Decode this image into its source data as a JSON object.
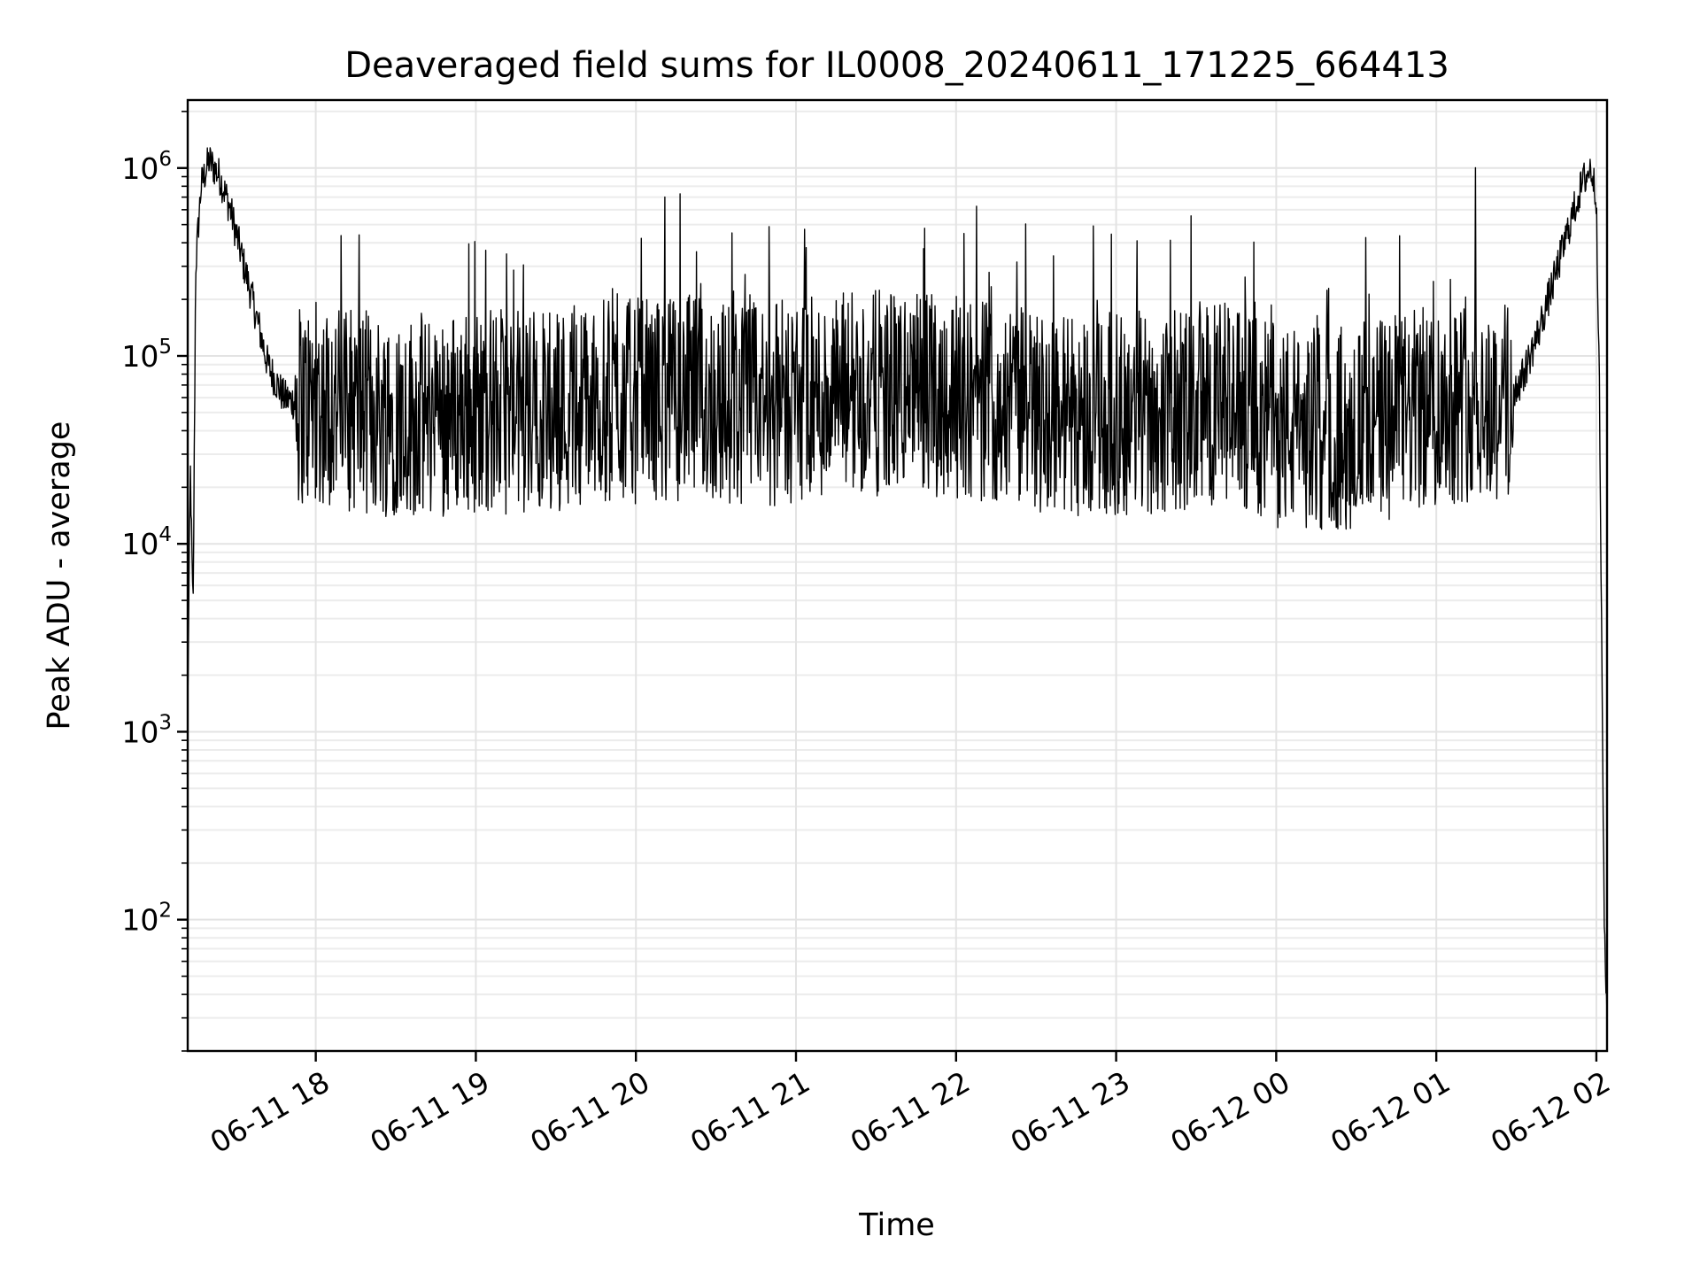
{
  "chart_data": {
    "type": "line",
    "title": "Deaveraged field sums for IL0008_20240611_171225_664413",
    "xlabel": "Time",
    "ylabel": "Peak ADU - average",
    "yscale": "log",
    "ylim": [
      20,
      2300000
    ],
    "xlim": [
      "2024-06-11 17:12",
      "2024-06-12 02:04"
    ],
    "grid": true,
    "line_color": "#000000",
    "x_ticks": [
      {
        "value": "2024-06-11 18:00",
        "label": "06-11 18"
      },
      {
        "value": "2024-06-11 19:00",
        "label": "06-11 19"
      },
      {
        "value": "2024-06-11 20:00",
        "label": "06-11 20"
      },
      {
        "value": "2024-06-11 21:00",
        "label": "06-11 21"
      },
      {
        "value": "2024-06-11 22:00",
        "label": "06-11 22"
      },
      {
        "value": "2024-06-11 23:00",
        "label": "06-11 23"
      },
      {
        "value": "2024-06-12 00:00",
        "label": "06-12 00"
      },
      {
        "value": "2024-06-12 01:00",
        "label": "06-12 01"
      },
      {
        "value": "2024-06-12 02:00",
        "label": "06-12 02"
      }
    ],
    "y_ticks": [
      {
        "value": 100,
        "base": "10",
        "exp": "2"
      },
      {
        "value": 1000,
        "base": "10",
        "exp": "3"
      },
      {
        "value": 10000,
        "base": "10",
        "exp": "4"
      },
      {
        "value": 100000,
        "base": "10",
        "exp": "5"
      },
      {
        "value": 1000000,
        "base": "10",
        "exp": "6"
      }
    ],
    "series": [
      {
        "x": [
          "2024-06-11 17:12",
          "2024-06-11 17:13",
          "2024-06-11 17:14",
          "2024-06-11 17:15",
          "2024-06-11 17:17",
          "2024-06-11 17:20",
          "2024-06-11 17:24",
          "2024-06-11 17:28",
          "2024-06-11 17:32",
          "2024-06-11 17:37",
          "2024-06-11 17:42",
          "2024-06-11 17:48",
          "2024-06-11 17:55",
          "2024-06-11 18:05",
          "2024-06-11 18:20",
          "2024-06-11 18:40",
          "2024-06-11 19:00",
          "2024-06-11 19:20",
          "2024-06-11 19:40",
          "2024-06-11 20:00",
          "2024-06-11 20:20",
          "2024-06-11 20:40",
          "2024-06-11 21:00",
          "2024-06-11 21:20",
          "2024-06-11 21:40",
          "2024-06-11 22:00",
          "2024-06-11 22:20",
          "2024-06-11 22:40",
          "2024-06-11 23:00",
          "2024-06-11 23:20",
          "2024-06-11 23:40",
          "2024-06-12 00:00",
          "2024-06-12 00:20",
          "2024-06-12 00:40",
          "2024-06-12 01:00",
          "2024-06-12 01:15",
          "2024-06-12 01:25",
          "2024-06-12 01:32",
          "2024-06-12 01:38",
          "2024-06-12 01:44",
          "2024-06-12 01:50",
          "2024-06-12 01:55",
          "2024-06-12 01:58",
          "2024-06-12 02:00",
          "2024-06-12 02:01",
          "2024-06-12 02:02",
          "2024-06-12 02:03",
          "2024-06-12 02:04"
        ],
        "y": [
          1300,
          25000,
          4000,
          300000,
          800000,
          1100000,
          900000,
          600000,
          350000,
          180000,
          90000,
          60000,
          55000,
          55000,
          50000,
          48000,
          52000,
          50000,
          55000,
          58000,
          60000,
          55000,
          57000,
          62000,
          65000,
          62000,
          55000,
          50000,
          48000,
          50000,
          55000,
          42000,
          40000,
          45000,
          55000,
          60000,
          55000,
          75000,
          130000,
          250000,
          500000,
          850000,
          1000000,
          700000,
          100000,
          3000,
          80,
          30
        ]
      }
    ]
  }
}
